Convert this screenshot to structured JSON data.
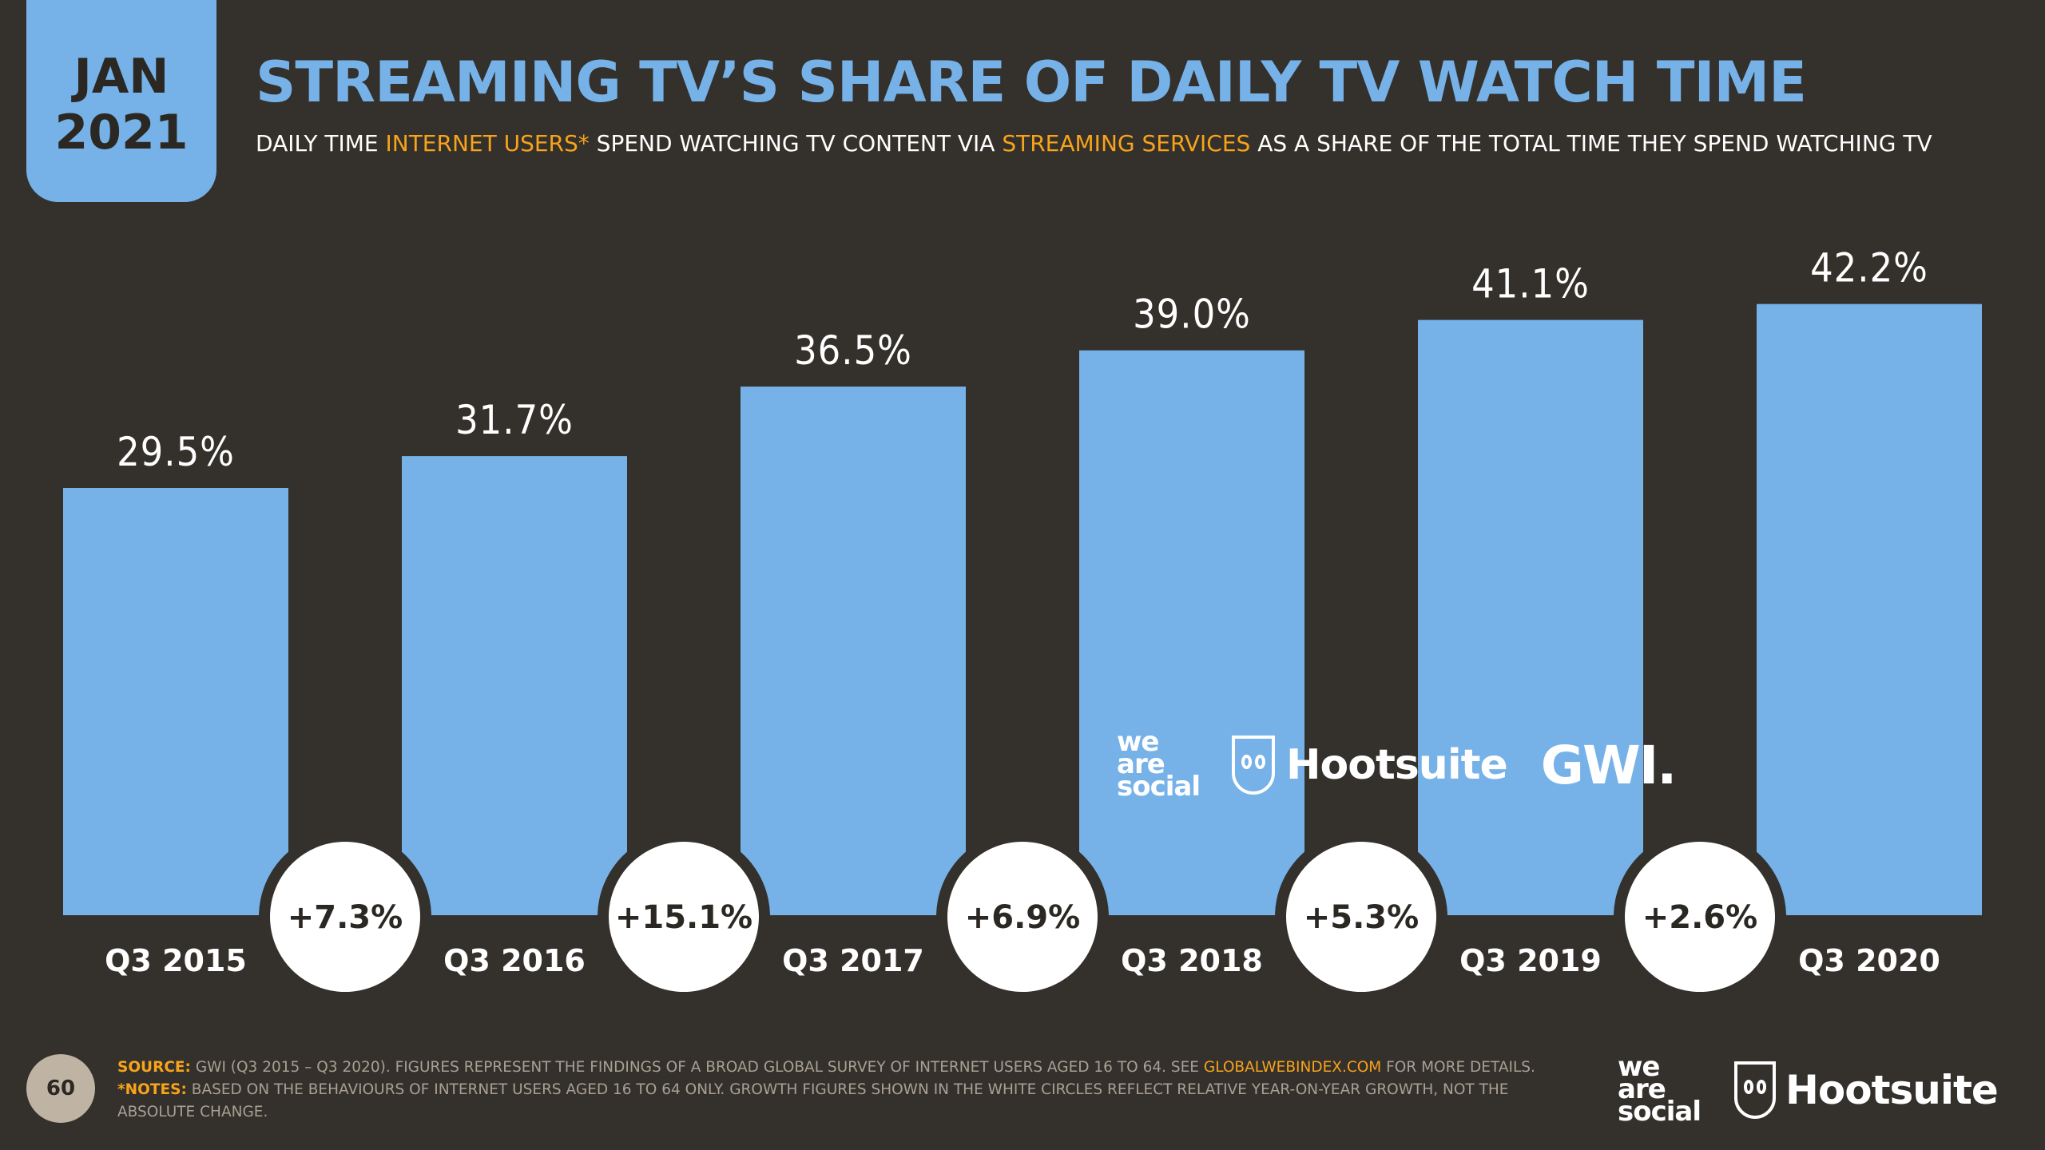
{
  "badge": {
    "month": "JAN",
    "year": "2021"
  },
  "title": "STREAMING TV’S SHARE OF DAILY TV WATCH TIME",
  "subtitle": {
    "p1": "DAILY TIME ",
    "h1": "INTERNET USERS*",
    "p2": " SPEND WATCHING TV CONTENT VIA ",
    "h2": "STREAMING SERVICES",
    "p3": " AS A SHARE OF THE TOTAL TIME THEY SPEND WATCHING TV"
  },
  "colors": {
    "background": "#34302b",
    "bar": "#76b2e8",
    "accent": "#f7a31c",
    "text": "#ffffff",
    "circle": "#ffffff",
    "circle_text": "#2b2824"
  },
  "chart_data": {
    "type": "bar",
    "categories": [
      "Q3 2015",
      "Q3 2016",
      "Q3 2017",
      "Q3 2018",
      "Q3 2019",
      "Q3 2020"
    ],
    "values": [
      29.5,
      31.7,
      36.5,
      39.0,
      41.1,
      42.2
    ],
    "value_labels": [
      "29.5%",
      "31.7%",
      "36.5%",
      "39.0%",
      "41.1%",
      "42.2%"
    ],
    "growth": [
      "+7.3%",
      "+15.1%",
      "+6.9%",
      "+5.3%",
      "+2.6%"
    ],
    "unit": "%",
    "ylim": [
      0,
      50
    ],
    "grid": false
  },
  "logos": {
    "we_are_social": [
      "we",
      "are",
      "social"
    ],
    "hootsuite": "Hootsuite",
    "gwi": "GWI."
  },
  "footer": {
    "page_number": "60",
    "source_label": "SOURCE:",
    "source_text": " GWI (Q3 2015 – Q3 2020). FIGURES REPRESENT THE FINDINGS OF A BROAD GLOBAL SURVEY OF INTERNET USERS AGED 16 TO 64. SEE ",
    "source_link": "GLOBALWEBINDEX.COM",
    "source_tail": " FOR MORE DETAILS.",
    "notes_label": "*NOTES:",
    "notes_text": " BASED ON THE BEHAVIOURS OF INTERNET USERS AGED 16 TO 64 ONLY. GROWTH FIGURES SHOWN IN THE WHITE CIRCLES REFLECT RELATIVE YEAR-ON-YEAR GROWTH, NOT THE ABSOLUTE CHANGE."
  }
}
